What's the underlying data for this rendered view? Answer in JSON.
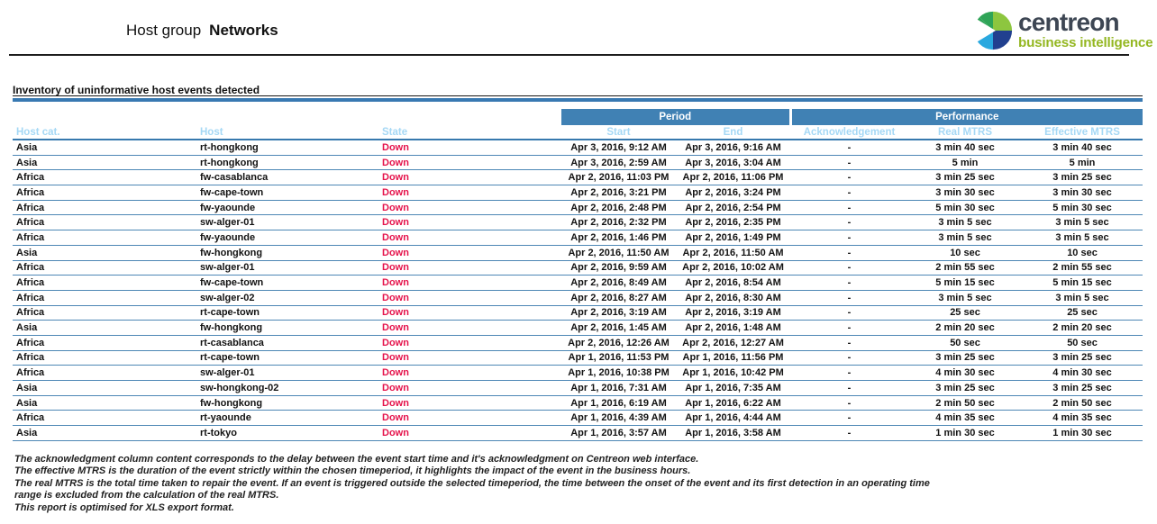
{
  "report": {
    "title_prefix": "Host group",
    "title_name": "Networks",
    "section_title": "Inventory of uninformative host events detected"
  },
  "logo": {
    "brand": "centreon",
    "tagline": "business intelligence",
    "mark_colors": {
      "lime": "#8DC63F",
      "teal_green": "#2FA457",
      "cyan": "#29A8DF",
      "navy": "#21408F"
    },
    "brand_color": "#3D4653",
    "tagline_color": "#94B721"
  },
  "colors": {
    "bar_blue": "#4081B4",
    "column_header_text": "#A5D8F5",
    "state_down_red": "#E5134B",
    "row_divider": "#4D87B5",
    "section_bar_blue": "#3879B2"
  },
  "table": {
    "group_headers": [
      {
        "label": "Period"
      },
      {
        "label": "Performance"
      }
    ],
    "columns": [
      "Host cat.",
      "Host",
      "State",
      "Start",
      "End",
      "Acknowledgement",
      "Real MTRS",
      "Effective MTRS"
    ],
    "rows": [
      [
        "Asia",
        "rt-hongkong",
        "Down",
        "Apr 3, 2016, 9:12 AM",
        "Apr 3, 2016, 9:16 AM",
        "-",
        "3 min 40 sec",
        "3 min 40 sec"
      ],
      [
        "Asia",
        "rt-hongkong",
        "Down",
        "Apr 3, 2016, 2:59 AM",
        "Apr 3, 2016, 3:04 AM",
        "-",
        "5 min",
        "5 min"
      ],
      [
        "Africa",
        "fw-casablanca",
        "Down",
        "Apr 2, 2016, 11:03 PM",
        "Apr 2, 2016, 11:06 PM",
        "-",
        "3 min 25 sec",
        "3 min 25 sec"
      ],
      [
        "Africa",
        "fw-cape-town",
        "Down",
        "Apr 2, 2016, 3:21 PM",
        "Apr 2, 2016, 3:24 PM",
        "-",
        "3 min 30 sec",
        "3 min 30 sec"
      ],
      [
        "Africa",
        "fw-yaounde",
        "Down",
        "Apr 2, 2016, 2:48 PM",
        "Apr 2, 2016, 2:54 PM",
        "-",
        "5 min 30 sec",
        "5 min 30 sec"
      ],
      [
        "Africa",
        "sw-alger-01",
        "Down",
        "Apr 2, 2016, 2:32 PM",
        "Apr 2, 2016, 2:35 PM",
        "-",
        "3 min 5 sec",
        "3 min 5 sec"
      ],
      [
        "Africa",
        "fw-yaounde",
        "Down",
        "Apr 2, 2016, 1:46 PM",
        "Apr 2, 2016, 1:49 PM",
        "-",
        "3 min 5 sec",
        "3 min 5 sec"
      ],
      [
        "Asia",
        "fw-hongkong",
        "Down",
        "Apr 2, 2016, 11:50 AM",
        "Apr 2, 2016, 11:50 AM",
        "-",
        "10 sec",
        "10 sec"
      ],
      [
        "Africa",
        "sw-alger-01",
        "Down",
        "Apr 2, 2016, 9:59 AM",
        "Apr 2, 2016, 10:02 AM",
        "-",
        "2 min 55 sec",
        "2 min 55 sec"
      ],
      [
        "Africa",
        "fw-cape-town",
        "Down",
        "Apr 2, 2016, 8:49 AM",
        "Apr 2, 2016, 8:54 AM",
        "-",
        "5 min 15 sec",
        "5 min 15 sec"
      ],
      [
        "Africa",
        "sw-alger-02",
        "Down",
        "Apr 2, 2016, 8:27 AM",
        "Apr 2, 2016, 8:30 AM",
        "-",
        "3 min 5 sec",
        "3 min 5 sec"
      ],
      [
        "Africa",
        "rt-cape-town",
        "Down",
        "Apr 2, 2016, 3:19 AM",
        "Apr 2, 2016, 3:19 AM",
        "-",
        "25 sec",
        "25 sec"
      ],
      [
        "Asia",
        "fw-hongkong",
        "Down",
        "Apr 2, 2016, 1:45 AM",
        "Apr 2, 2016, 1:48 AM",
        "-",
        "2 min 20 sec",
        "2 min 20 sec"
      ],
      [
        "Africa",
        "rt-casablanca",
        "Down",
        "Apr 2, 2016, 12:26 AM",
        "Apr 2, 2016, 12:27 AM",
        "-",
        "50 sec",
        "50 sec"
      ],
      [
        "Africa",
        "rt-cape-town",
        "Down",
        "Apr 1, 2016, 11:53 PM",
        "Apr 1, 2016, 11:56 PM",
        "-",
        "3 min 25 sec",
        "3 min 25 sec"
      ],
      [
        "Africa",
        "sw-alger-01",
        "Down",
        "Apr 1, 2016, 10:38 PM",
        "Apr 1, 2016, 10:42 PM",
        "-",
        "4 min 30 sec",
        "4 min 30 sec"
      ],
      [
        "Asia",
        "sw-hongkong-02",
        "Down",
        "Apr 1, 2016, 7:31 AM",
        "Apr 1, 2016, 7:35 AM",
        "-",
        "3 min 25 sec",
        "3 min 25 sec"
      ],
      [
        "Asia",
        "fw-hongkong",
        "Down",
        "Apr 1, 2016, 6:19 AM",
        "Apr 1, 2016, 6:22 AM",
        "-",
        "2 min 50 sec",
        "2 min 50 sec"
      ],
      [
        "Africa",
        "rt-yaounde",
        "Down",
        "Apr 1, 2016, 4:39 AM",
        "Apr 1, 2016, 4:44 AM",
        "-",
        "4 min 35 sec",
        "4 min 35 sec"
      ],
      [
        "Asia",
        "rt-tokyo",
        "Down",
        "Apr 1, 2016, 3:57 AM",
        "Apr 1, 2016, 3:58 AM",
        "-",
        "1 min 30 sec",
        "1 min 30 sec"
      ]
    ]
  },
  "footer": {
    "lines": [
      "The acknowledgment column content corresponds to the delay between the event start time and it's acknowledgment on Centreon web interface.",
      "The effective MTRS is the duration of the event strictly within the chosen timeperiod, it highlights the impact of the event in the business hours.",
      "The real MTRS is the total time taken to repair the event. If an event is triggered outside the selected timeperiod, the time between the onset of the event and its first detection in an operating time",
      "range  is excluded from the calculation of the real MTRS.",
      "This report is optimised for XLS export format."
    ]
  }
}
